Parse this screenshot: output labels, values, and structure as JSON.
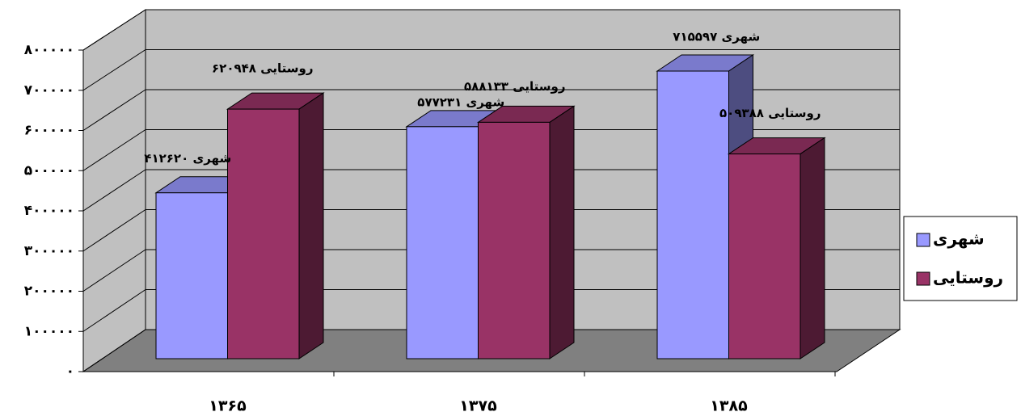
{
  "chart_data": {
    "type": "bar3d",
    "categories": [
      "۱۳۶۵",
      "۱۳۷۵",
      "۱۳۸۵"
    ],
    "series": [
      {
        "name": "شهری",
        "color": "#9999ff",
        "values": [
          412620,
          577231,
          715597
        ],
        "value_labels": [
          "شهری ۴۱۲۶۲۰",
          "شهری ۵۷۷۲۳۱",
          "شهری ۷۱۵۵۹۷"
        ]
      },
      {
        "name": "روستایی",
        "color": "#993366",
        "values": [
          620948,
          588133,
          509388
        ],
        "value_labels": [
          "روستایی ۶۲۰۹۴۸",
          "روستایی ۵۸۸۱۳۳",
          "روستایی ۵۰۹۳۸۸"
        ]
      }
    ],
    "ylim": [
      0,
      800000
    ],
    "yticks": [
      {
        "value": 0,
        "label": "۰"
      },
      {
        "value": 100000,
        "label": "۱۰۰۰۰۰"
      },
      {
        "value": 200000,
        "label": "۲۰۰۰۰۰"
      },
      {
        "value": 300000,
        "label": "۳۰۰۰۰۰"
      },
      {
        "value": 400000,
        "label": "۴۰۰۰۰۰"
      },
      {
        "value": 500000,
        "label": "۵۰۰۰۰۰"
      },
      {
        "value": 600000,
        "label": "۶۰۰۰۰۰"
      },
      {
        "value": 700000,
        "label": "۷۰۰۰۰۰"
      },
      {
        "value": 800000,
        "label": "۸۰۰۰۰۰"
      }
    ],
    "grid": true,
    "legend": "right"
  }
}
